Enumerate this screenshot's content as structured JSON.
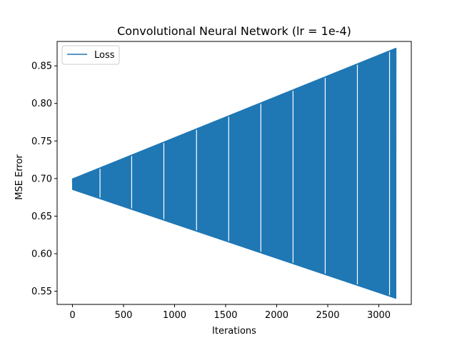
{
  "chart_data": {
    "type": "line",
    "title": "Convolutional Neural Network (lr = 1e-4)",
    "xlabel": "Iterations",
    "ylabel": "MSE Error",
    "xlim": [
      -150,
      3318
    ],
    "ylim": [
      0.5325,
      0.8825
    ],
    "xticks": [
      0,
      500,
      1000,
      1500,
      2000,
      2500,
      3000
    ],
    "yticks": [
      0.55,
      0.6,
      0.65,
      0.7,
      0.75,
      0.8,
      0.85
    ],
    "grid": false,
    "legend": {
      "position": "top-left",
      "entries": [
        "Loss"
      ]
    },
    "series": [
      {
        "name": "Loss",
        "color": "#1f77b4",
        "pattern": "oscillating envelope (alternating upper/lower values every iteration)",
        "x_range": [
          0,
          3168
        ],
        "upper_envelope": {
          "x": [
            0,
            3168
          ],
          "y": [
            0.7,
            0.874
          ]
        },
        "lower_envelope": {
          "x": [
            0,
            3168
          ],
          "y": [
            0.685,
            0.54
          ]
        },
        "gap_iterations": [
          270,
          580,
          895,
          1215,
          1530,
          1845,
          2160,
          2475,
          2790,
          3105
        ]
      }
    ]
  }
}
